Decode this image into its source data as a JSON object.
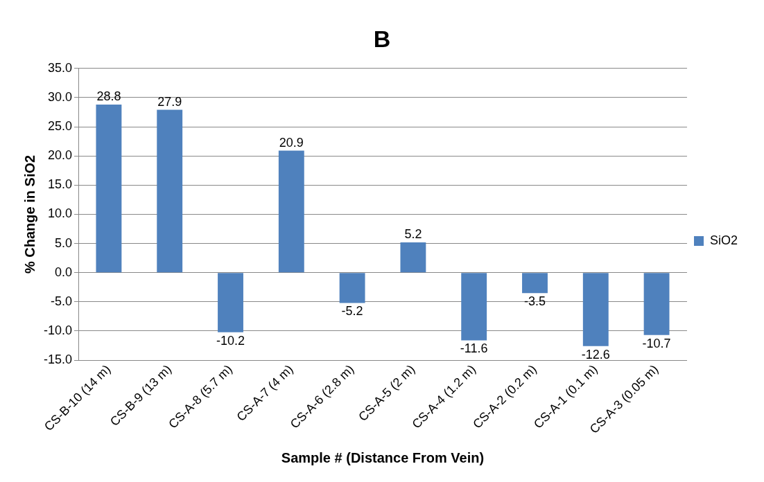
{
  "chart_data": {
    "type": "bar",
    "title": "B",
    "xlabel": "Sample # (Distance From Vein)",
    "ylabel": "% Change in SiO2",
    "categories": [
      "CS-B-10 (14 m)",
      "CS-B-9 (13 m)",
      "CS-A-8 (5.7 m)",
      "CS-A-7 (4 m)",
      "CS-A-6 (2.8 m)",
      "CS-A-5 (2 m)",
      "CS-A-4 (1.2 m)",
      "CS-A-2 (0.2 m)",
      "CS-A-1 (0.1 m)",
      "CS-A-3 (0.05 m)"
    ],
    "series": [
      {
        "name": "SiO2",
        "color": "#4f81bd",
        "values": [
          28.8,
          27.9,
          -10.2,
          20.9,
          -5.2,
          5.2,
          -11.6,
          -3.5,
          -12.6,
          -10.7
        ]
      }
    ],
    "ylim": [
      -15,
      35
    ],
    "yticks": [
      {
        "value": -15,
        "label": "-15.0"
      },
      {
        "value": -10,
        "label": "-10.0"
      },
      {
        "value": -5,
        "label": "-5.0"
      },
      {
        "value": 0,
        "label": "0.0"
      },
      {
        "value": 5,
        "label": "5.0"
      },
      {
        "value": 10,
        "label": "10.0"
      },
      {
        "value": 15,
        "label": "15.0"
      },
      {
        "value": 20,
        "label": "20.0"
      },
      {
        "value": 25,
        "label": "25.0"
      },
      {
        "value": 30,
        "label": "30.0"
      },
      {
        "value": 35,
        "label": "35.0"
      }
    ],
    "grid": "y",
    "legend": "right",
    "data_labels": true
  }
}
